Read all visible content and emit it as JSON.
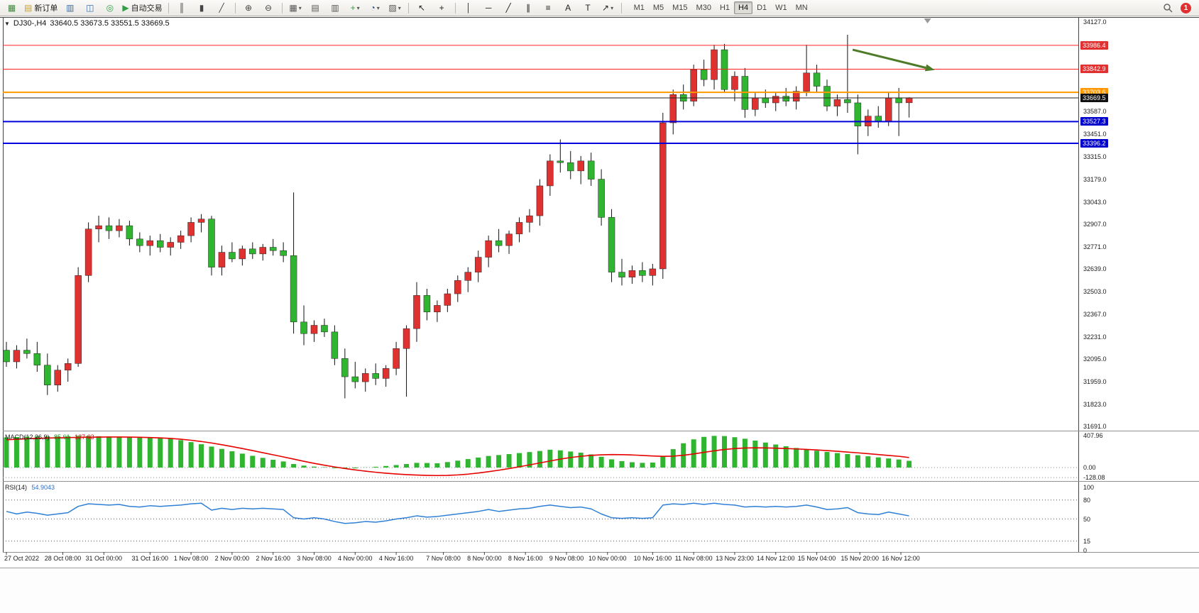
{
  "toolbar": {
    "items": [
      {
        "type": "icon",
        "name": "new-chart-icon",
        "glyph": "▦",
        "color": "#3c8a3c"
      },
      {
        "type": "button",
        "name": "new-order-button",
        "glyph": "▤",
        "color": "#c9a227",
        "label": "新订单"
      },
      {
        "type": "icon",
        "name": "market-depth-icon",
        "glyph": "▥",
        "color": "#3b6ea5"
      },
      {
        "type": "icon",
        "name": "profile-icon",
        "glyph": "◫",
        "color": "#3b6ea5"
      },
      {
        "type": "icon",
        "name": "signals-icon",
        "glyph": "◎",
        "color": "#2f9e44"
      },
      {
        "type": "button",
        "name": "autotrading-button",
        "glyph": "▶",
        "color": "#2f9e44",
        "label": "自动交易"
      },
      {
        "type": "sep"
      },
      {
        "type": "icon",
        "name": "bar-chart-icon",
        "glyph": "║",
        "color": "#444444"
      },
      {
        "type": "icon",
        "name": "candlestick-chart-icon",
        "glyph": "▮",
        "color": "#444444"
      },
      {
        "type": "icon",
        "name": "line-chart-icon",
        "glyph": "╱",
        "color": "#444444"
      },
      {
        "type": "sep"
      },
      {
        "type": "icon",
        "name": "zoom-in-icon",
        "glyph": "⊕",
        "color": "#444444"
      },
      {
        "type": "icon",
        "name": "zoom-out-icon",
        "glyph": "⊖",
        "color": "#444444"
      },
      {
        "type": "sep"
      },
      {
        "type": "icon",
        "name": "tile-windows-icon",
        "glyph": "▦",
        "color": "#555555",
        "dropdown": true
      },
      {
        "type": "icon",
        "name": "cascade-windows-icon",
        "glyph": "▤",
        "color": "#555555"
      },
      {
        "type": "icon",
        "name": "arrange-windows-icon",
        "glyph": "▥",
        "color": "#555555"
      },
      {
        "type": "icon",
        "name": "add-indicator-icon",
        "glyph": "+",
        "color": "#2f9e44",
        "dropdown": true
      },
      {
        "type": "icon",
        "name": "periods-icon",
        "glyph": "◔",
        "color": "#28508c",
        "dropdown": true
      },
      {
        "type": "icon",
        "name": "templates-icon",
        "glyph": "▨",
        "color": "#555555",
        "dropdown": true
      },
      {
        "type": "sep"
      },
      {
        "type": "icon",
        "name": "cursor-icon",
        "glyph": "↖",
        "color": "#222222"
      },
      {
        "type": "icon",
        "name": "crosshair-icon",
        "glyph": "+",
        "color": "#222222"
      },
      {
        "type": "sep"
      },
      {
        "type": "icon",
        "name": "vertical-line-icon",
        "glyph": "│",
        "color": "#222222"
      },
      {
        "type": "icon",
        "name": "horizontal-line-icon",
        "glyph": "─",
        "color": "#222222"
      },
      {
        "type": "icon",
        "name": "trendline-icon",
        "glyph": "╱",
        "color": "#222222"
      },
      {
        "type": "icon",
        "name": "equidistant-channel-icon",
        "glyph": "∥",
        "color": "#222222"
      },
      {
        "type": "icon",
        "name": "fibonacci-icon",
        "glyph": "≡",
        "color": "#222222"
      },
      {
        "type": "icon",
        "name": "text-icon",
        "glyph": "A",
        "color": "#222222"
      },
      {
        "type": "icon",
        "name": "text-label-icon",
        "glyph": "T",
        "color": "#222222"
      },
      {
        "type": "icon",
        "name": "arrows-icon",
        "glyph": "↗",
        "color": "#222222",
        "dropdown": true
      },
      {
        "type": "sep"
      }
    ],
    "timeframes": [
      "M1",
      "M5",
      "M15",
      "M30",
      "H1",
      "H4",
      "D1",
      "W1",
      "MN"
    ],
    "active_timeframe": "H4",
    "notification_count": "1"
  },
  "chart": {
    "symbol_dropdown_icon": "▼",
    "title": "DJ30-,H4",
    "ohlc": "33640.5 33673.5 33551.5 33669.5",
    "current_price": 33669.5,
    "price_axis_plain": [
      34127.0,
      33587.0,
      33451.0,
      33315.0,
      33179.0,
      33043.0,
      32907.0,
      32771.0,
      32639.0,
      32503.0,
      32367.0,
      32231.0,
      32095.0,
      31959.0,
      31823.0,
      31691.0
    ],
    "hlines": [
      {
        "name": "resistance-line-1",
        "price": 33986.4,
        "color": "#ff2020",
        "width": 1,
        "badge_bg": "#e03030"
      },
      {
        "name": "resistance-line-2",
        "price": 33842.9,
        "color": "#ff2020",
        "width": 1,
        "badge_bg": "#e03030"
      },
      {
        "name": "pivot-line",
        "price": 33703.6,
        "color": "#ff9800",
        "width": 2,
        "badge_bg": "#ff9800"
      },
      {
        "name": "current-price-line",
        "price": 33669.5,
        "color": "#222222",
        "width": 1,
        "badge_bg": "#111111"
      },
      {
        "name": "support-line-1",
        "price": 33527.3,
        "color": "#0000dd",
        "width": 2,
        "badge_bg": "#0000cc"
      },
      {
        "name": "support-line-2",
        "price": 33396.2,
        "color": "#0000dd",
        "width": 2,
        "badge_bg": "#0000cc"
      }
    ],
    "annotations": [
      {
        "type": "arrow",
        "name": "trend-arrow",
        "color": "#4e7b27",
        "from": {
          "i": 82.5,
          "price": 33960
        },
        "to": {
          "i": 90.5,
          "price": 33838
        }
      }
    ],
    "shift_marker_i": 89.8
  },
  "chart_data": {
    "type": "candlestick",
    "symbol": "DJ30-",
    "timeframe": "H4",
    "ylim": [
      31691.0,
      34127.0
    ],
    "up_color": "#e03131",
    "down_color": "#2fb52f",
    "note": "red = bullish, green = bearish",
    "candles": [
      [
        32150,
        32200,
        32050,
        32080
      ],
      [
        32080,
        32180,
        32040,
        32150
      ],
      [
        32150,
        32220,
        32100,
        32130
      ],
      [
        32130,
        32200,
        32020,
        32060
      ],
      [
        32060,
        32130,
        31880,
        31940
      ],
      [
        31940,
        32060,
        31900,
        32030
      ],
      [
        32030,
        32100,
        31960,
        32070
      ],
      [
        32070,
        32650,
        32050,
        32600
      ],
      [
        32600,
        32920,
        32560,
        32880
      ],
      [
        32880,
        32960,
        32800,
        32900
      ],
      [
        32900,
        32950,
        32820,
        32870
      ],
      [
        32870,
        32940,
        32830,
        32900
      ],
      [
        32900,
        32930,
        32780,
        32820
      ],
      [
        32820,
        32860,
        32740,
        32780
      ],
      [
        32780,
        32840,
        32720,
        32810
      ],
      [
        32810,
        32850,
        32740,
        32770
      ],
      [
        32770,
        32830,
        32720,
        32800
      ],
      [
        32800,
        32870,
        32760,
        32840
      ],
      [
        32840,
        32950,
        32800,
        32920
      ],
      [
        32920,
        32970,
        32860,
        32940
      ],
      [
        32940,
        32960,
        32600,
        32650
      ],
      [
        32650,
        32780,
        32600,
        32740
      ],
      [
        32740,
        32800,
        32680,
        32700
      ],
      [
        32700,
        32780,
        32660,
        32760
      ],
      [
        32760,
        32800,
        32700,
        32730
      ],
      [
        32730,
        32790,
        32690,
        32770
      ],
      [
        32770,
        32820,
        32720,
        32750
      ],
      [
        32750,
        32800,
        32680,
        32720
      ],
      [
        32720,
        33100,
        32250,
        32320
      ],
      [
        32320,
        32420,
        32180,
        32250
      ],
      [
        32250,
        32330,
        32200,
        32300
      ],
      [
        32300,
        32340,
        32230,
        32260
      ],
      [
        32260,
        32300,
        32060,
        32100
      ],
      [
        32100,
        32160,
        31860,
        31990
      ],
      [
        31990,
        32080,
        31920,
        31960
      ],
      [
        31960,
        32040,
        31900,
        32010
      ],
      [
        32010,
        32070,
        31940,
        31980
      ],
      [
        31980,
        32060,
        31930,
        32040
      ],
      [
        32040,
        32200,
        32000,
        32160
      ],
      [
        32160,
        32300,
        31870,
        32280
      ],
      [
        32280,
        32560,
        32200,
        32480
      ],
      [
        32480,
        32520,
        32330,
        32380
      ],
      [
        32380,
        32450,
        32320,
        32420
      ],
      [
        32420,
        32520,
        32380,
        32490
      ],
      [
        32490,
        32600,
        32440,
        32570
      ],
      [
        32570,
        32650,
        32500,
        32620
      ],
      [
        32620,
        32750,
        32560,
        32710
      ],
      [
        32710,
        32840,
        32650,
        32810
      ],
      [
        32810,
        32880,
        32740,
        32780
      ],
      [
        32780,
        32870,
        32730,
        32850
      ],
      [
        32850,
        32950,
        32800,
        32920
      ],
      [
        32920,
        33000,
        32860,
        32960
      ],
      [
        32960,
        33180,
        32900,
        33140
      ],
      [
        33140,
        33330,
        33080,
        33290
      ],
      [
        33290,
        33420,
        33220,
        33280
      ],
      [
        33280,
        33350,
        33180,
        33230
      ],
      [
        33230,
        33320,
        33150,
        33290
      ],
      [
        33290,
        33340,
        33140,
        33180
      ],
      [
        33180,
        33240,
        32900,
        32950
      ],
      [
        32950,
        33000,
        32560,
        32620
      ],
      [
        32620,
        32700,
        32540,
        32590
      ],
      [
        32590,
        32660,
        32550,
        32630
      ],
      [
        32630,
        32680,
        32560,
        32600
      ],
      [
        32600,
        32670,
        32540,
        32640
      ],
      [
        32640,
        33580,
        32580,
        33520
      ],
      [
        33520,
        33720,
        33450,
        33690
      ],
      [
        33690,
        33750,
        33600,
        33650
      ],
      [
        33650,
        33870,
        33620,
        33840
      ],
      [
        33840,
        33900,
        33740,
        33780
      ],
      [
        33780,
        33990,
        33720,
        33960
      ],
      [
        33960,
        33995,
        33700,
        33720
      ],
      [
        33720,
        33830,
        33650,
        33800
      ],
      [
        33800,
        33850,
        33550,
        33600
      ],
      [
        33600,
        33700,
        33560,
        33670
      ],
      [
        33670,
        33720,
        33610,
        33640
      ],
      [
        33640,
        33700,
        33590,
        33680
      ],
      [
        33680,
        33730,
        33620,
        33650
      ],
      [
        33650,
        33740,
        33600,
        33710
      ],
      [
        33710,
        33990,
        33680,
        33820
      ],
      [
        33820,
        33870,
        33700,
        33740
      ],
      [
        33740,
        33780,
        33590,
        33620
      ],
      [
        33620,
        33690,
        33560,
        33660
      ],
      [
        33660,
        34050,
        33580,
        33640
      ],
      [
        33640,
        33690,
        33330,
        33500
      ],
      [
        33500,
        33600,
        33440,
        33560
      ],
      [
        33560,
        33620,
        33490,
        33530
      ],
      [
        33530,
        33700,
        33500,
        33670
      ],
      [
        33670,
        33730,
        33440,
        33640
      ],
      [
        33640.5,
        33673.5,
        33551.5,
        33669.5
      ]
    ],
    "time_ticks": [
      {
        "label": "27 Oct 2022",
        "i": 0
      },
      {
        "label": "28 Oct 08:00",
        "i": 5.5
      },
      {
        "label": "31 Oct 00:00",
        "i": 9.5
      },
      {
        "label": "31 Oct 16:00",
        "i": 14
      },
      {
        "label": "1 Nov 08:00",
        "i": 18
      },
      {
        "label": "2 Nov 00:00",
        "i": 22
      },
      {
        "label": "2 Nov 16:00",
        "i": 26
      },
      {
        "label": "3 Nov 08:00",
        "i": 30
      },
      {
        "label": "4 Nov 00:00",
        "i": 34
      },
      {
        "label": "4 Nov 16:00",
        "i": 38
      },
      {
        "label": "7 Nov 08:00",
        "i": 42.6
      },
      {
        "label": "8 Nov 00:00",
        "i": 46.6
      },
      {
        "label": "8 Nov 16:00",
        "i": 50.6
      },
      {
        "label": "9 Nov 08:00",
        "i": 54.6
      },
      {
        "label": "10 Nov 00:00",
        "i": 58.6
      },
      {
        "label": "10 Nov 16:00",
        "i": 63
      },
      {
        "label": "11 Nov 08:00",
        "i": 67
      },
      {
        "label": "13 Nov 23:00",
        "i": 71
      },
      {
        "label": "14 Nov 12:00",
        "i": 75
      },
      {
        "label": "15 Nov 04:00",
        "i": 79
      },
      {
        "label": "15 Nov 20:00",
        "i": 83.2
      },
      {
        "label": "16 Nov 12:00",
        "i": 87.2
      }
    ],
    "indicators": [
      {
        "type": "macd_histogram",
        "name": "MACD(12,26,9)",
        "main": "85.61",
        "signal_value": "127.63",
        "ylim": [
          -128.08,
          407.96
        ],
        "hist_color": "#2fb52f",
        "signal_color": "#e60000",
        "axis": [
          {
            "label": "407.96",
            "v": 407.96
          },
          {
            "label": "0.00",
            "v": 0
          },
          {
            "label": "-128.08",
            "v": -128.08
          }
        ],
        "histogram": [
          385,
          390,
          395,
          400,
          398,
          396,
          400,
          405,
          403,
          400,
          398,
          395,
          390,
          388,
          385,
          380,
          372,
          350,
          325,
          298,
          268,
          238,
          208,
          178,
          150,
          124,
          100,
          78,
          45,
          25,
          12,
          5,
          -8,
          -15,
          -10,
          2,
          10,
          20,
          32,
          45,
          60,
          58,
          55,
          70,
          88,
          108,
          128,
          148,
          160,
          172,
          185,
          198,
          212,
          228,
          220,
          205,
          190,
          168,
          138,
          105,
          82,
          68,
          60,
          64,
          140,
          235,
          310,
          360,
          392,
          405,
          402,
          388,
          368,
          345,
          320,
          295,
          272,
          250,
          232,
          215,
          200,
          185,
          172,
          158,
          144,
          130,
          116,
          103,
          86
        ],
        "signal": [
          355,
          362,
          368,
          373,
          377,
          380,
          383,
          386,
          388,
          389,
          390,
          390,
          389,
          387,
          384,
          379,
          372,
          362,
          349,
          333,
          314,
          292,
          268,
          243,
          217,
          190,
          163,
          136,
          108,
          80,
          54,
          30,
          8,
          -12,
          -30,
          -46,
          -60,
          -72,
          -82,
          -90,
          -96,
          -100,
          -102,
          -100,
          -94,
          -84,
          -70,
          -53,
          -34,
          -13,
          10,
          34,
          59,
          84,
          108,
          128,
          144,
          156,
          163,
          166,
          165,
          161,
          155,
          148,
          143,
          146,
          157,
          174,
          194,
          214,
          231,
          243,
          250,
          252,
          251,
          248,
          243,
          238,
          232,
          225,
          217,
          208,
          198,
          188,
          177,
          166,
          155,
          144,
          128
        ]
      },
      {
        "type": "rsi",
        "name": "RSI(14)",
        "value": "54.9043",
        "ylim": [
          0,
          100
        ],
        "line_color": "#2e7fd6",
        "levels": [
          80,
          50,
          15
        ],
        "axis": [
          {
            "label": "100",
            "v": 100
          },
          {
            "label": "80",
            "v": 80
          },
          {
            "label": "50",
            "v": 50
          },
          {
            "label": "15",
            "v": 15
          },
          {
            "label": "0",
            "v": 0
          }
        ],
        "values": [
          62,
          58,
          61,
          59,
          56,
          58,
          60,
          70,
          74,
          73,
          72,
          73,
          70,
          69,
          71,
          70,
          71,
          72,
          74,
          75,
          64,
          67,
          65,
          67,
          66,
          67,
          66,
          65,
          52,
          50,
          52,
          50,
          46,
          43,
          44,
          46,
          45,
          47,
          50,
          52,
          55,
          53,
          54,
          56,
          58,
          60,
          62,
          65,
          62,
          64,
          66,
          67,
          70,
          72,
          70,
          68,
          69,
          66,
          58,
          52,
          51,
          52,
          51,
          52,
          72,
          74,
          73,
          75,
          73,
          75,
          73,
          72,
          69,
          70,
          69,
          70,
          69,
          70,
          72,
          69,
          65,
          66,
          68,
          60,
          58,
          57,
          61,
          58,
          55
        ]
      }
    ]
  }
}
